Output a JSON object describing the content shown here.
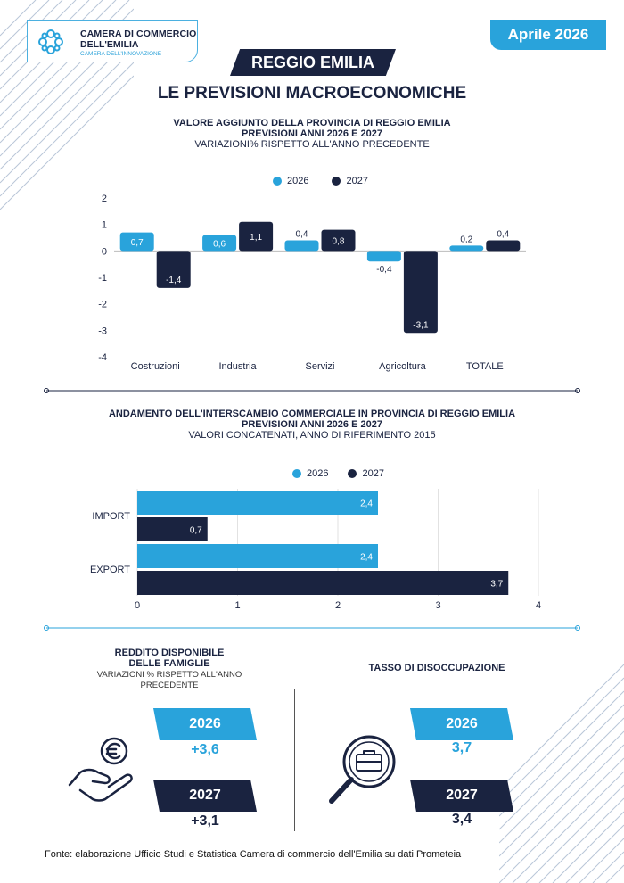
{
  "header": {
    "logo_line1": "CAMERA DI COMMERCIO",
    "logo_line2": "DELL'EMILIA",
    "logo_line3": "CAMERA DELL'INNOVAZIONE",
    "date": "Aprile 2026",
    "city": "REGGIO EMILIA",
    "title": "LE PREVISIONI MACROECONOMICHE"
  },
  "chart1": {
    "title1": "VALORE AGGIUNTO DELLA PROVINCIA DI REGGIO EMILIA",
    "title2": "PREVISIONI ANNI 2026 E 2027",
    "subtitle": "VARIAZIONI% RISPETTO ALL'ANNO PRECEDENTE"
  },
  "chart2": {
    "title1": "ANDAMENTO DELL'INTERSCAMBIO COMMERCIALE IN PROVINCIA DI REGGIO EMILIA",
    "title2": "PREVISIONI ANNI 2026 E 2027",
    "subtitle": "VALORI CONCATENATI, ANNO DI RIFERIMENTO 2015"
  },
  "chart_data": [
    {
      "type": "bar",
      "orientation": "vertical",
      "categories": [
        "Costruzioni",
        "Industria",
        "Servizi",
        "Agricoltura",
        "TOTALE"
      ],
      "series": [
        {
          "name": "2026",
          "values": [
            0.7,
            0.6,
            0.4,
            -0.4,
            0.2
          ],
          "labels": [
            "0,7",
            "0,6",
            "0,4",
            "-0,4",
            "0,2"
          ],
          "color": "#29a3db"
        },
        {
          "name": "2027",
          "values": [
            -1.4,
            1.1,
            0.8,
            -3.1,
            0.4
          ],
          "labels": [
            "-1,4",
            "1,1",
            "0,8",
            "-3,1",
            "0,4"
          ],
          "color": "#1a2340"
        }
      ],
      "ylim": [
        -4,
        2
      ],
      "yticks": [
        "2",
        "1",
        "0",
        "-1",
        "-2",
        "-3",
        "-4"
      ],
      "ytick_values": [
        2,
        1,
        0,
        -1,
        -2,
        -3,
        -4
      ],
      "legend": "top-center",
      "grid": false
    },
    {
      "type": "bar",
      "orientation": "horizontal",
      "categories": [
        "IMPORT",
        "EXPORT"
      ],
      "series": [
        {
          "name": "2026",
          "values": [
            2.4,
            2.4
          ],
          "labels": [
            "2,4",
            "2,4"
          ],
          "color": "#29a3db"
        },
        {
          "name": "2027",
          "values": [
            0.7,
            3.7
          ],
          "labels": [
            "0,7",
            "3,7"
          ],
          "color": "#1a2340"
        }
      ],
      "xlim": [
        0,
        4
      ],
      "xticks": [
        "0",
        "1",
        "2",
        "3",
        "4"
      ],
      "xtick_values": [
        0,
        1,
        2,
        3,
        4
      ],
      "legend": "top-center",
      "grid": true
    }
  ],
  "reddito": {
    "title1": "REDDITO DISPONIBILE",
    "title2": "DELLE FAMIGLIE",
    "subtitle1": "VARIAZIONI % RISPETTO ALL'ANNO",
    "subtitle2": "PRECEDENTE",
    "year1": "2026",
    "value1": "+3,6",
    "year2": "2027",
    "value2": "+3,1"
  },
  "disoccupazione": {
    "title": "TASSO DI DISOCCUPAZIONE",
    "year1": "2026",
    "value1": "3,7",
    "year2": "2027",
    "value2": "3,4"
  },
  "footer": {
    "text": "Fonte: elaborazione Ufficio Studi e Statistica Camera di commercio dell'Emilia su dati Prometeia"
  },
  "icons": [
    "logo-icon",
    "euro-hand-icon",
    "magnifier-briefcase-icon"
  ],
  "colors": {
    "accent": "#29a3db",
    "dark": "#1a2340"
  }
}
